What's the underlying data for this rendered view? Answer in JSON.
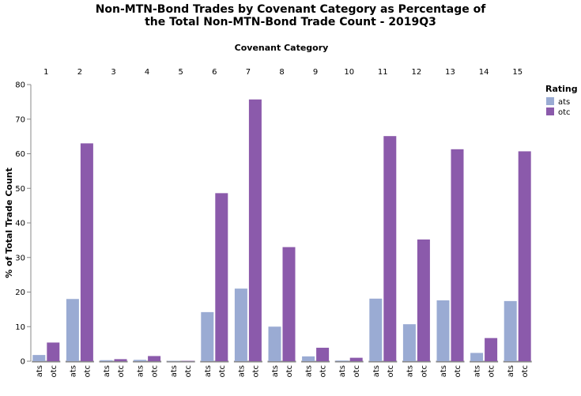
{
  "chart_data": {
    "type": "bar",
    "title_lines": [
      "Non-MTN-Bond Trades by Covenant Category as Percentage of",
      "the Total Non-MTN-Bond Trade Count - 2019Q3"
    ],
    "column_title": "Covenant Category",
    "ylabel": "% of Total Trade Count",
    "ylim": [
      0,
      80
    ],
    "yticks": [
      0,
      10,
      20,
      30,
      40,
      50,
      60,
      70,
      80
    ],
    "categories": [
      "1",
      "2",
      "3",
      "4",
      "5",
      "6",
      "7",
      "8",
      "9",
      "10",
      "11",
      "12",
      "13",
      "14",
      "15"
    ],
    "sub_categories": [
      "ats",
      "otc"
    ],
    "series": [
      {
        "name": "ats",
        "color": "#9aabd3",
        "values": [
          1.8,
          18.0,
          0.3,
          0.4,
          0.1,
          14.2,
          21.0,
          10.0,
          1.4,
          0.2,
          18.1,
          10.7,
          17.6,
          2.4,
          17.4
        ]
      },
      {
        "name": "otc",
        "color": "#8b5aab",
        "values": [
          5.4,
          63.0,
          0.6,
          1.5,
          0.1,
          48.6,
          75.7,
          33.0,
          3.9,
          1.0,
          65.1,
          35.2,
          61.3,
          6.7,
          60.7
        ]
      }
    ],
    "legend": {
      "title": "Rating",
      "placement": "top-right"
    },
    "grid": false
  }
}
